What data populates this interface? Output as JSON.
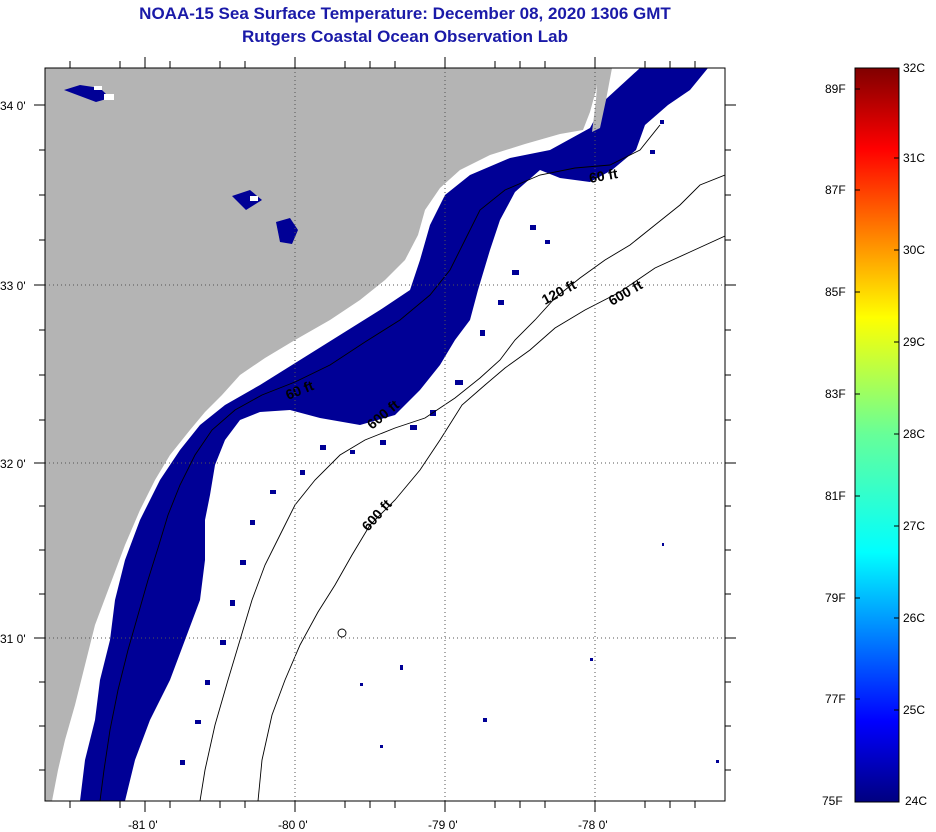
{
  "header": {
    "title": "NOAA-15 Sea Surface Temperature:  December 08, 2020 1306 GMT",
    "subtitle": "Rutgers Coastal Ocean Observation Lab"
  },
  "map": {
    "lon_ticks": [
      "-81 0'",
      "-80 0'",
      "-79 0'",
      "-78 0'"
    ],
    "lat_ticks": [
      "34 0'",
      "33 0'",
      "32 0'",
      "31 0'"
    ],
    "contours": {
      "c1": "60 ft",
      "c2": "120 ft",
      "c3": "600 ft",
      "c4": "600 ft",
      "c5": "600 ft",
      "c6": "60 ft"
    },
    "colors": {
      "land": "#b4b4b4",
      "cold_water": "#000096",
      "missing": "#ffffff"
    }
  },
  "colorbar": {
    "fahrenheit": [
      "89F",
      "87F",
      "85F",
      "83F",
      "81F",
      "79F",
      "77F",
      "75F"
    ],
    "celsius": [
      "32C",
      "31C",
      "30C",
      "29C",
      "28C",
      "27C",
      "26C",
      "25C",
      "24C"
    ]
  }
}
